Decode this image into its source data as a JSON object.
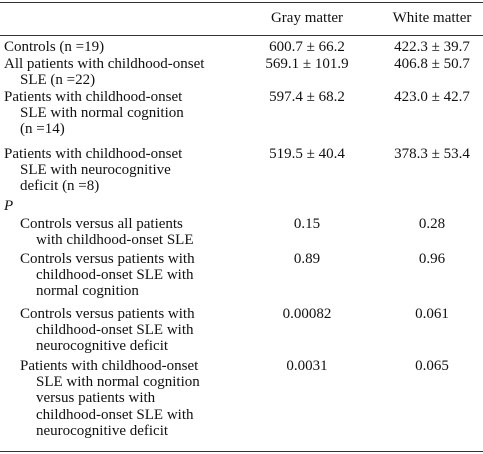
{
  "table": {
    "headers": [
      "Gray matter",
      "White matter"
    ],
    "rows": [
      {
        "label": [
          "Controls (n =19)"
        ],
        "gray": "600.7 ± 66.2",
        "white": "422.3 ± 39.7"
      },
      {
        "label": [
          "All patients with childhood-onset",
          "SLE (n =22)"
        ],
        "gray": "569.1 ± 101.9",
        "white": "406.8 ± 50.7"
      },
      {
        "label": [
          "Patients with childhood-onset",
          "SLE with normal cognition",
          "(n =14)"
        ],
        "gray": "597.4 ± 68.2",
        "white": "423.0 ± 42.7"
      },
      {
        "label": [
          "Patients with childhood-onset",
          "SLE with neurocognitive",
          "deficit (n =8)"
        ],
        "gray": "519.5 ± 40.4",
        "white": "378.3 ± 53.4"
      }
    ],
    "p_section": "P",
    "p_rows": [
      {
        "label": [
          "Controls versus all patients",
          "with childhood-onset SLE"
        ],
        "gray": "0.15",
        "white": "0.28"
      },
      {
        "label": [
          "Controls versus patients with",
          "childhood-onset SLE with",
          "normal cognition"
        ],
        "gray": "0.89",
        "white": "0.96"
      },
      {
        "label": [
          "Controls versus patients with",
          "childhood-onset SLE with",
          "neurocognitive deficit"
        ],
        "gray": "0.00082",
        "white": "0.061"
      },
      {
        "label": [
          "Patients with childhood-onset",
          "SLE with normal cognition",
          "versus patients with",
          "childhood-onset SLE with",
          "neurocognitive deficit"
        ],
        "gray": "0.0031",
        "white": "0.065"
      }
    ]
  }
}
